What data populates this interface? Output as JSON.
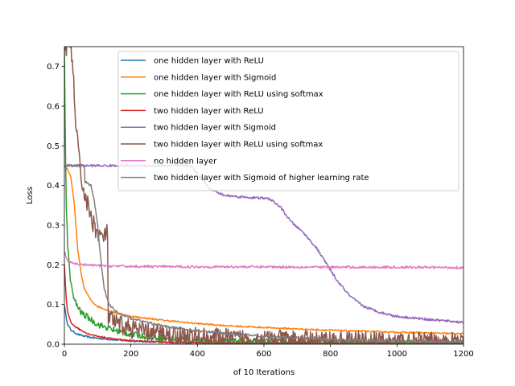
{
  "chart_data": {
    "type": "line",
    "title": "",
    "xlabel": "of 10 Iterations",
    "ylabel": "Loss",
    "xlim": [
      0,
      1200
    ],
    "ylim": [
      0,
      0.75
    ],
    "xticks": [
      "0",
      "200",
      "400",
      "600",
      "800",
      "1000",
      "1200"
    ],
    "yticks": [
      "0.0",
      "0.1",
      "0.2",
      "0.3",
      "0.4",
      "0.5",
      "0.6",
      "0.7"
    ],
    "grid": false,
    "legend_position": "upper-right",
    "series": [
      {
        "name": "one hidden layer with ReLU",
        "color": "#1f77b4",
        "noise": 0.002,
        "x": [
          0,
          5,
          10,
          20,
          30,
          40,
          60,
          80,
          100,
          150,
          200,
          300,
          400,
          500,
          600,
          800,
          1000,
          1200
        ],
        "y": [
          0.1,
          0.07,
          0.05,
          0.035,
          0.03,
          0.025,
          0.02,
          0.017,
          0.015,
          0.011,
          0.008,
          0.005,
          0.004,
          0.003,
          0.003,
          0.002,
          0.002,
          0.002
        ]
      },
      {
        "name": "one hidden layer with Sigmoid",
        "color": "#ff7f0e",
        "noise": 0.002,
        "x": [
          0,
          10,
          20,
          30,
          40,
          50,
          60,
          80,
          100,
          150,
          200,
          300,
          400,
          500,
          600,
          800,
          1000,
          1200
        ],
        "y": [
          0.45,
          0.44,
          0.42,
          0.35,
          0.24,
          0.18,
          0.14,
          0.11,
          0.095,
          0.08,
          0.07,
          0.06,
          0.052,
          0.046,
          0.042,
          0.035,
          0.03,
          0.026
        ]
      },
      {
        "name": "one hidden layer with ReLU using softmax",
        "color": "#2ca02c",
        "noise": 0.008,
        "x": [
          0,
          3,
          6,
          10,
          15,
          20,
          30,
          50,
          75,
          100,
          150,
          200,
          300,
          400,
          600,
          800,
          1000,
          1200
        ],
        "y": [
          0.75,
          0.5,
          0.35,
          0.25,
          0.19,
          0.15,
          0.11,
          0.08,
          0.065,
          0.05,
          0.035,
          0.025,
          0.015,
          0.01,
          0.006,
          0.005,
          0.004,
          0.004
        ]
      },
      {
        "name": "two hidden layer with ReLU",
        "color": "#d62728",
        "noise": 0.002,
        "x": [
          0,
          3,
          6,
          10,
          20,
          30,
          50,
          75,
          100,
          150,
          200,
          300,
          400,
          600,
          800,
          1000,
          1200
        ],
        "y": [
          0.2,
          0.15,
          0.11,
          0.08,
          0.055,
          0.045,
          0.035,
          0.025,
          0.02,
          0.013,
          0.009,
          0.005,
          0.003,
          0.002,
          0.002,
          0.001,
          0.001
        ]
      },
      {
        "name": "two hidden layer with Sigmoid",
        "color": "#9467bd",
        "noise": 0.003,
        "x": [
          0,
          200,
          380,
          400,
          440,
          480,
          550,
          600,
          620,
          650,
          680,
          720,
          760,
          790,
          820,
          860,
          900,
          950,
          1000,
          1100,
          1200
        ],
        "y": [
          0.45,
          0.45,
          0.45,
          0.43,
          0.39,
          0.375,
          0.37,
          0.368,
          0.365,
          0.345,
          0.31,
          0.28,
          0.24,
          0.2,
          0.16,
          0.12,
          0.095,
          0.08,
          0.07,
          0.062,
          0.055
        ]
      },
      {
        "name": "two hidden layer with ReLU using softmax",
        "color": "#8c564b",
        "noise": 0.025,
        "x": [
          0,
          5,
          10,
          15,
          20,
          25,
          30,
          40,
          50,
          60,
          70,
          80,
          90,
          100,
          110,
          120,
          130,
          131,
          140,
          160,
          200,
          250,
          300,
          400,
          500,
          600,
          700,
          800,
          900,
          1000,
          1100,
          1200
        ],
        "y": [
          0.75,
          0.75,
          0.75,
          0.75,
          0.75,
          0.7,
          0.62,
          0.5,
          0.42,
          0.38,
          0.35,
          0.32,
          0.3,
          0.28,
          0.27,
          0.27,
          0.28,
          0.07,
          0.06,
          0.05,
          0.04,
          0.03,
          0.025,
          0.018,
          0.014,
          0.012,
          0.01,
          0.009,
          0.008,
          0.007,
          0.006,
          0.005
        ]
      },
      {
        "name": "no hidden layer",
        "color": "#e377c2",
        "noise": 0.003,
        "x": [
          0,
          5,
          10,
          20,
          40,
          60,
          100,
          200,
          400,
          600,
          800,
          1000,
          1200
        ],
        "y": [
          0.235,
          0.22,
          0.21,
          0.205,
          0.202,
          0.2,
          0.198,
          0.196,
          0.195,
          0.195,
          0.194,
          0.194,
          0.193
        ]
      },
      {
        "name": "two hidden layer with Sigmoid of higher learning rate",
        "color": "#7f7f7f",
        "noise": 0.003,
        "x": [
          0,
          60,
          62,
          70,
          80,
          90,
          100,
          105,
          110,
          115,
          120,
          130,
          140,
          160,
          200,
          300,
          400,
          600,
          800,
          1000,
          1200
        ],
        "y": [
          0.45,
          0.45,
          0.41,
          0.405,
          0.4,
          0.36,
          0.3,
          0.25,
          0.21,
          0.17,
          0.14,
          0.11,
          0.095,
          0.08,
          0.065,
          0.045,
          0.033,
          0.02,
          0.012,
          0.008,
          0.006
        ]
      }
    ]
  }
}
